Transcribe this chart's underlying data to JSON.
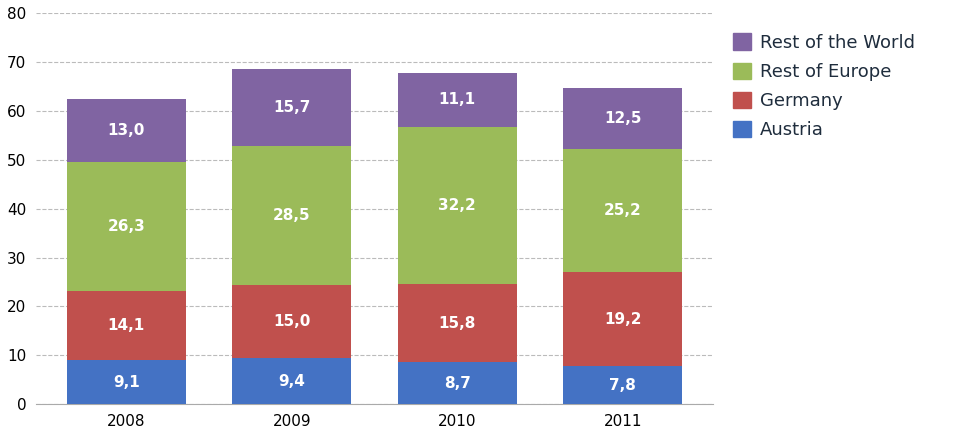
{
  "years": [
    "2008",
    "2009",
    "2010",
    "2011"
  ],
  "austria": [
    9.1,
    9.4,
    8.7,
    7.8
  ],
  "germany": [
    14.1,
    15.0,
    15.8,
    19.2
  ],
  "rest_of_europe": [
    26.3,
    28.5,
    32.2,
    25.2
  ],
  "rest_of_world": [
    13.0,
    15.7,
    11.1,
    12.5
  ],
  "colors": {
    "austria": "#4472C4",
    "germany": "#C0504D",
    "rest_of_europe": "#9BBB59",
    "rest_of_world": "#8064A2"
  },
  "ylim": [
    0,
    80
  ],
  "yticks": [
    0,
    10,
    20,
    30,
    40,
    50,
    60,
    70,
    80
  ],
  "bar_width": 0.72,
  "label_fontsize": 11,
  "tick_fontsize": 11,
  "legend_fontsize": 13,
  "background_color": "#FFFFFF",
  "grid_color": "#BBBBBB",
  "text_color": "#FFFFFF",
  "legend_text_color": "#1F2D3D"
}
